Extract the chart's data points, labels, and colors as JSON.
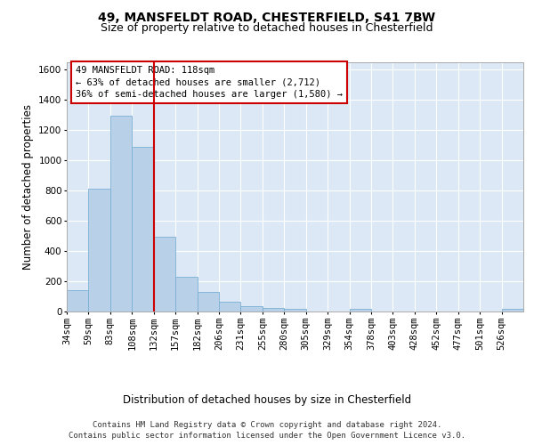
{
  "title_line1": "49, MANSFELDT ROAD, CHESTERFIELD, S41 7BW",
  "title_line2": "Size of property relative to detached houses in Chesterfield",
  "xlabel": "Distribution of detached houses by size in Chesterfield",
  "ylabel": "Number of detached properties",
  "footer_line1": "Contains HM Land Registry data © Crown copyright and database right 2024.",
  "footer_line2": "Contains public sector information licensed under the Open Government Licence v3.0.",
  "annotation_line1": "49 MANSFELDT ROAD: 118sqm",
  "annotation_line2": "← 63% of detached houses are smaller (2,712)",
  "annotation_line3": "36% of semi-detached houses are larger (1,580) →",
  "bar_color": "#b8d0e8",
  "bar_edge_color": "#7aafd4",
  "marker_color": "#cc0000",
  "marker_bin_index": 3,
  "categories": [
    "34sqm",
    "59sqm",
    "83sqm",
    "108sqm",
    "132sqm",
    "157sqm",
    "182sqm",
    "206sqm",
    "231sqm",
    "255sqm",
    "280sqm",
    "305sqm",
    "329sqm",
    "354sqm",
    "378sqm",
    "403sqm",
    "428sqm",
    "452sqm",
    "477sqm",
    "501sqm",
    "526sqm"
  ],
  "values": [
    140,
    815,
    1295,
    1090,
    495,
    230,
    130,
    65,
    38,
    25,
    15,
    0,
    0,
    15,
    0,
    0,
    0,
    0,
    0,
    0,
    15
  ],
  "ylim": [
    0,
    1650
  ],
  "yticks": [
    0,
    200,
    400,
    600,
    800,
    1000,
    1200,
    1400,
    1600
  ],
  "figure_background_color": "#ffffff",
  "plot_background_color": "#dce8f5",
  "grid_color": "#ffffff",
  "title_fontsize": 10,
  "subtitle_fontsize": 9,
  "axis_label_fontsize": 8.5,
  "tick_fontsize": 7.5,
  "annotation_fontsize": 7.5,
  "footer_fontsize": 6.5
}
